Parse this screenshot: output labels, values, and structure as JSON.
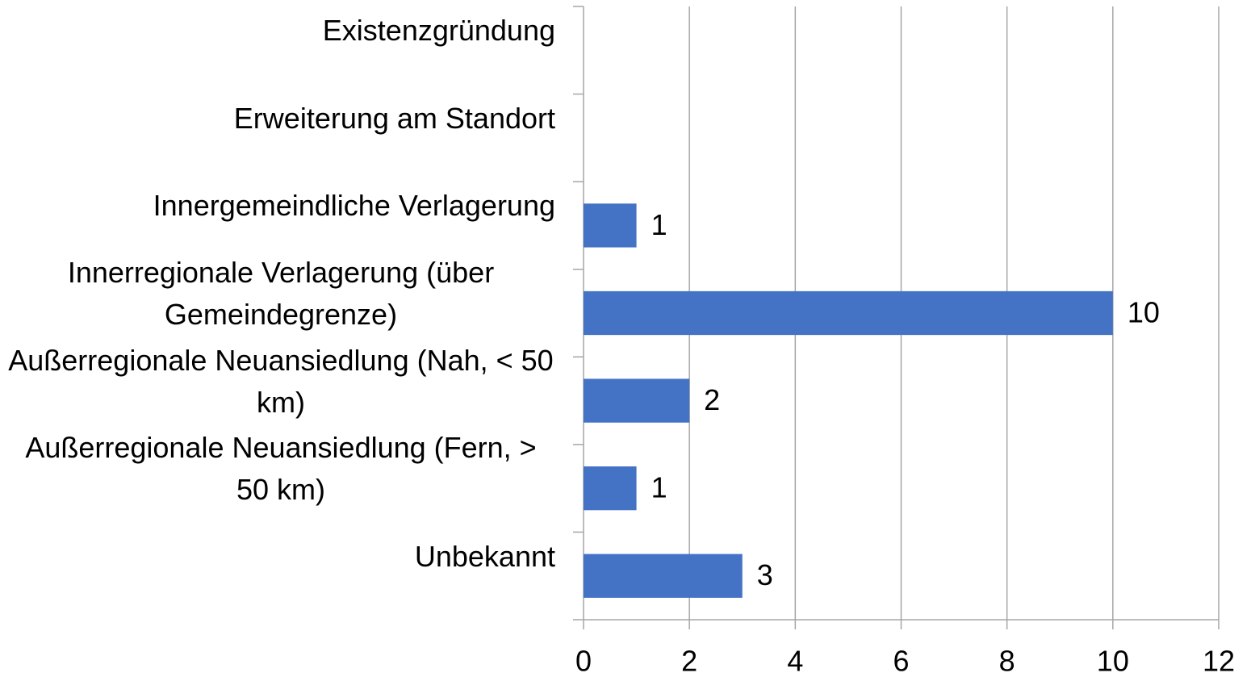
{
  "chart_data": {
    "type": "hbar",
    "categories": [
      "Existenzgründung",
      "Erweiterung am Standort",
      "Innergemeindliche Verlagerung",
      "Innerregionale Verlagerung (über Gemeindegrenze)",
      "Außerregionale Neuansiedlung (Nah, < 50 km)",
      "Außerregionale Neuansiedlung (Fern, > 50 km)",
      "Unbekannt"
    ],
    "values": [
      null,
      null,
      1,
      10,
      2,
      1,
      3
    ],
    "color": "#4472c4",
    "xlim": [
      0,
      12
    ],
    "xticks": [
      0,
      2,
      4,
      6,
      8,
      10,
      12
    ],
    "grid": true
  }
}
